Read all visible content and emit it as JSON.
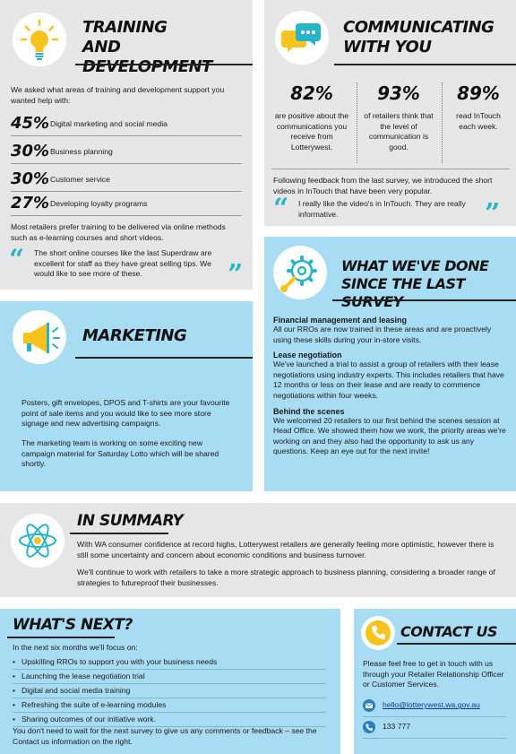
{
  "training": {
    "heading": "TRAINING AND DEVELOPMENT",
    "intro": "We asked what areas of training and development support you wanted help with:",
    "stats": [
      {
        "pct": "45%",
        "label": "Digital marketing and social media",
        "value": 45
      },
      {
        "pct": "30%",
        "label": "Business planning",
        "value": 30
      },
      {
        "pct": "30%",
        "label": "Customer service",
        "value": 30
      },
      {
        "pct": "27%",
        "label": "Developing loyalty programs",
        "value": 27
      }
    ],
    "summary": "Most retailers prefer training to be delivered via online methods such as e-learning courses and short videos.",
    "quote": "The short online courses like the last Superdraw are excellent for staff as they have great selling tips. We would like to see more of these.",
    "icon": "lightbulb-icon"
  },
  "communicating": {
    "heading": "COMMUNICATING WITH YOU",
    "stats": [
      {
        "pct": "82%",
        "label": "are positive about the communications you receive from Lotterywest."
      },
      {
        "pct": "93%",
        "label": "of retailers think that the level of communication is good."
      },
      {
        "pct": "89%",
        "label": "read InTouch each week."
      }
    ],
    "feedback": "Following feedback from the last survey, we introduced the short videos in InTouch that have been very popular.",
    "quote": "I really like the video's in InTouch. They are really informative.",
    "icon": "speech-bubbles-icon"
  },
  "marketing": {
    "heading": "MARKETING",
    "p1": "Posters, gift envelopes, DPOS and T-shirts are your favourite point of sale items and you would like to see more store signage and new advertising campaigns.",
    "p2": "The marketing team is working on some exciting new campaign material for Saturday Lotto which will be shared shortly.",
    "icon": "megaphone-icon"
  },
  "done": {
    "heading": "WHAT WE'VE DONE SINCE THE LAST SURVEY",
    "sections": [
      {
        "title": "Financial management and leasing",
        "body": "All our RROs are now trained in these areas and are proactively using these skills during your in-store visits."
      },
      {
        "title": "Lease negotiation",
        "body": "We've launched a trial to assist a group of retailers with their lease negotiations using industry experts. This includes retailers that have 12 months or less on their lease and are ready to commence negotiations within four weeks."
      },
      {
        "title": "Behind the scenes",
        "body": "We welcomed 20 retailers to our first behind the scenes session at Head Office. We showed them how we work, the priority areas we're working on and they also had the opportunity to ask us any questions. Keep an eye out for the next invite!"
      }
    ],
    "icon": "gears-icon"
  },
  "summary": {
    "heading": "IN SUMMARY",
    "p1": "With WA consumer confidence at record highs, Lotterywest retailers are generally feeling more optimistic, however there is still some uncertainty and concern about economic conditions and business turnover.",
    "p2": "We'll continue to work with retailers to take a more strategic approach to business planning, considering a broader range of strategies to futureproof their businesses.",
    "icon": "atom-icon"
  },
  "next": {
    "heading": "WHAT'S NEXT?",
    "intro": "In the next six months we'll focus on:",
    "items": [
      "Upskilling RROs to support you with your business needs",
      "Launching the lease negotiation trial",
      "Digital and social media training",
      "Refreshing the suite of e-learning modules",
      "Sharing outcomes of our initiative work."
    ],
    "outro": "You don't need to wait for the next survey to give us any comments or feedback – see the Contact us information on the right."
  },
  "contact": {
    "heading": "CONTACT US",
    "body": "Please feel free to get in touch with us through your Retailer Relationship Officer or Customer Services.",
    "email": "hello@lotterywest.wa.gov.au",
    "phone": "133 777",
    "icon": "phone-icon"
  },
  "colors": {
    "grey": "#e6e6e6",
    "blue": "#a8dcf3",
    "accent": "#27b4c6",
    "yellow": "#f7c31c"
  }
}
